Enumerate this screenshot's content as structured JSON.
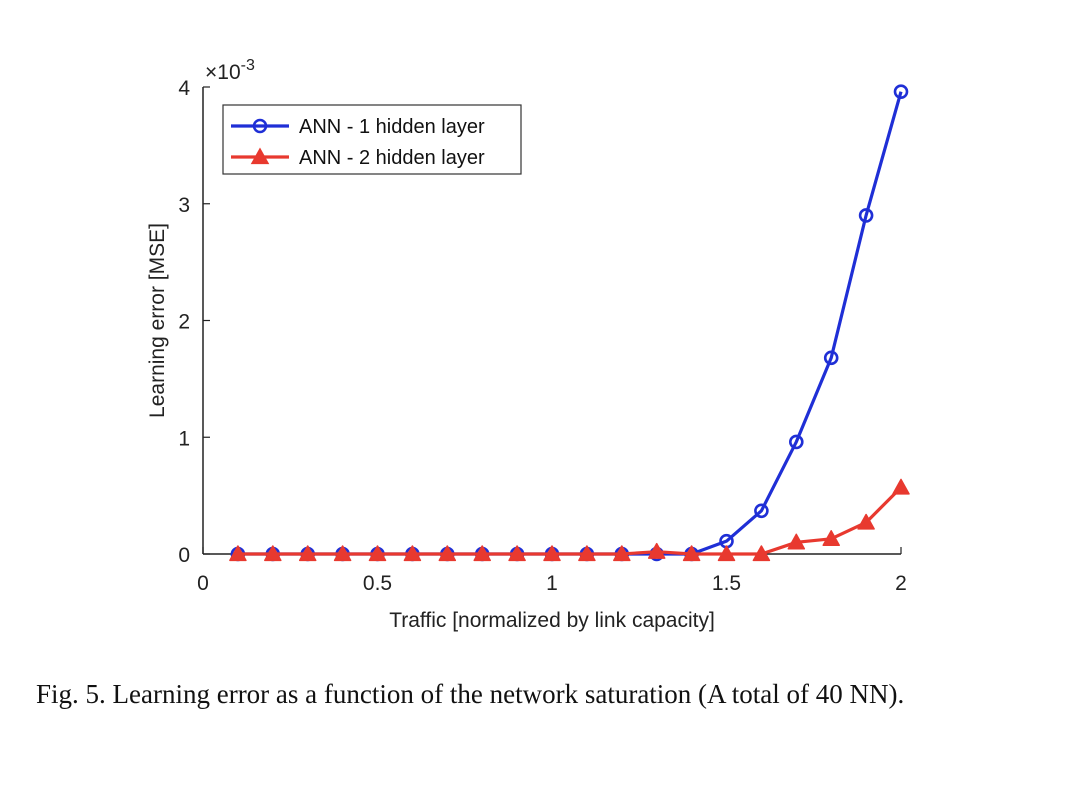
{
  "chart_data": {
    "type": "line",
    "x": [
      0.1,
      0.2,
      0.3,
      0.4,
      0.5,
      0.6,
      0.7,
      0.8,
      0.9,
      1.0,
      1.1,
      1.2,
      1.3,
      1.4,
      1.5,
      1.6,
      1.7,
      1.8,
      1.9,
      2.0
    ],
    "series": [
      {
        "name": "ANN - 1 hidden layer",
        "color": "#1f2fd6",
        "marker": "circle",
        "values": [
          0,
          0,
          0,
          0,
          0,
          0,
          0,
          0,
          0,
          0,
          0,
          0,
          0,
          0,
          0.00011,
          0.00037,
          0.00096,
          0.00168,
          0.0029,
          0.00396
        ]
      },
      {
        "name": "ANN - 2 hidden layer",
        "color": "#e8392f",
        "marker": "triangle",
        "values": [
          0,
          0,
          0,
          0,
          0,
          0,
          0,
          0,
          0,
          0,
          0,
          0,
          2e-05,
          0,
          0,
          0,
          0.0001,
          0.00013,
          0.00027,
          0.00057
        ]
      }
    ],
    "xlabel": "Traffic [normalized by link capacity]",
    "ylabel": "Learning error [MSE]",
    "y_exponent_label": "×10",
    "y_exponent_power": "-3",
    "xlim": [
      0,
      2
    ],
    "ylim": [
      0,
      0.004
    ],
    "xticks": [
      0,
      0.5,
      1,
      1.5,
      2
    ],
    "xtick_labels": [
      "0",
      "0.5",
      "1",
      "1.5",
      "2"
    ],
    "yticks": [
      0,
      0.001,
      0.002,
      0.003,
      0.004
    ],
    "ytick_labels": [
      "0",
      "1",
      "2",
      "3",
      "4"
    ],
    "grid": false,
    "legend_position": "top-left"
  },
  "caption": "Fig. 5.  Learning error as a function of the network saturation (A total of 40 NN)."
}
